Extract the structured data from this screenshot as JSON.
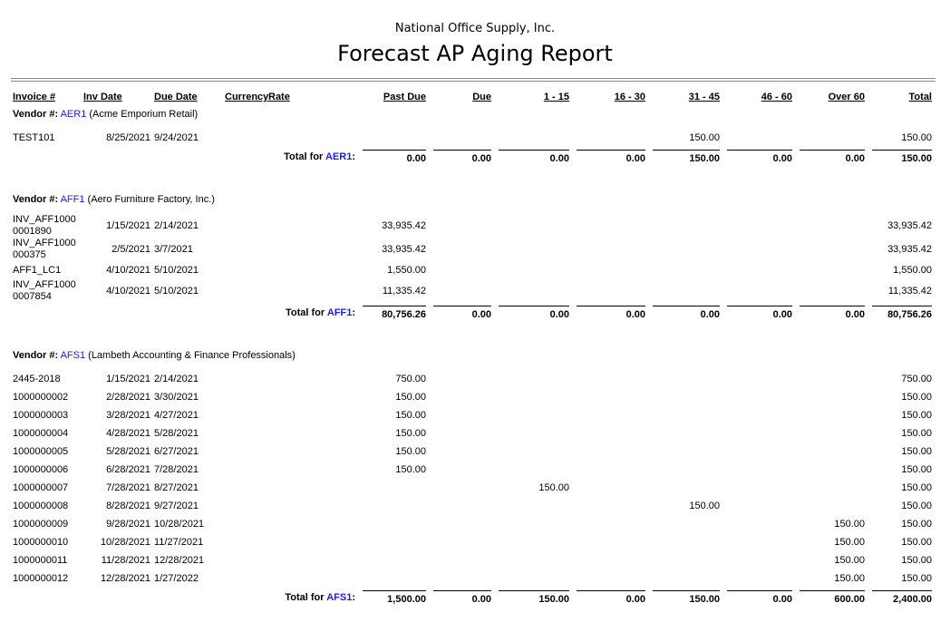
{
  "header": {
    "company": "National Office Supply, Inc.",
    "title": "Forecast AP Aging Report"
  },
  "labels": {
    "vendor": "Vendor #:",
    "total_for": "Total for",
    "colon": ":"
  },
  "columns": [
    "Invoice #",
    "Inv Date",
    "Due Date",
    "Currency",
    "Rate",
    "Past Due",
    "Due",
    "1 - 15",
    "16 - 30",
    "31 - 45",
    "46 - 60",
    "Over 60",
    "Total"
  ],
  "groups": [
    {
      "code": "AER1",
      "name": "(Acme Emporium Retail)",
      "rows": [
        [
          "TEST101",
          "8/25/2021",
          "9/24/2021",
          null,
          null,
          null,
          null,
          null,
          null,
          "150.00",
          null,
          null,
          "150.00"
        ]
      ],
      "totals": [
        "0.00",
        "0.00",
        "0.00",
        "0.00",
        "150.00",
        "0.00",
        "0.00",
        "150.00"
      ]
    },
    {
      "code": "AFF1",
      "name": "(Aero Furniture Factory, Inc.)",
      "rows": [
        [
          "INV_AFF10000001890",
          "1/15/2021",
          "2/14/2021",
          null,
          null,
          "33,935.42",
          null,
          null,
          null,
          null,
          null,
          null,
          "33,935.42"
        ],
        [
          "INV_AFF1000000375",
          "2/5/2021",
          "3/7/2021",
          null,
          null,
          "33,935.42",
          null,
          null,
          null,
          null,
          null,
          null,
          "33,935.42"
        ],
        [
          "AFF1_LC1",
          "4/10/2021",
          "5/10/2021",
          null,
          null,
          "1,550.00",
          null,
          null,
          null,
          null,
          null,
          null,
          "1,550.00"
        ],
        [
          "INV_AFF10000007854",
          "4/10/2021",
          "5/10/2021",
          null,
          null,
          "11,335.42",
          null,
          null,
          null,
          null,
          null,
          null,
          "11,335.42"
        ]
      ],
      "totals": [
        "80,756.26",
        "0.00",
        "0.00",
        "0.00",
        "0.00",
        "0.00",
        "0.00",
        "80,756.26"
      ]
    },
    {
      "code": "AFS1",
      "name": "(Lambeth Accounting & Finance Professionals)",
      "rows": [
        [
          "2445-2018",
          "1/15/2021",
          "2/14/2021",
          null,
          null,
          "750.00",
          null,
          null,
          null,
          null,
          null,
          null,
          "750.00"
        ],
        [
          "1000000002",
          "2/28/2021",
          "3/30/2021",
          null,
          null,
          "150.00",
          null,
          null,
          null,
          null,
          null,
          null,
          "150.00"
        ],
        [
          "1000000003",
          "3/28/2021",
          "4/27/2021",
          null,
          null,
          "150.00",
          null,
          null,
          null,
          null,
          null,
          null,
          "150.00"
        ],
        [
          "1000000004",
          "4/28/2021",
          "5/28/2021",
          null,
          null,
          "150.00",
          null,
          null,
          null,
          null,
          null,
          null,
          "150.00"
        ],
        [
          "1000000005",
          "5/28/2021",
          "6/27/2021",
          null,
          null,
          "150.00",
          null,
          null,
          null,
          null,
          null,
          null,
          "150.00"
        ],
        [
          "1000000006",
          "6/28/2021",
          "7/28/2021",
          null,
          null,
          "150.00",
          null,
          null,
          null,
          null,
          null,
          null,
          "150.00"
        ],
        [
          "1000000007",
          "7/28/2021",
          "8/27/2021",
          null,
          null,
          null,
          null,
          "150.00",
          null,
          null,
          null,
          null,
          "150.00"
        ],
        [
          "1000000008",
          "8/28/2021",
          "9/27/2021",
          null,
          null,
          null,
          null,
          null,
          null,
          "150.00",
          null,
          null,
          "150.00"
        ],
        [
          "1000000009",
          "9/28/2021",
          "10/28/2021",
          null,
          null,
          null,
          null,
          null,
          null,
          null,
          null,
          "150.00",
          "150.00"
        ],
        [
          "1000000010",
          "10/28/2021",
          "11/27/2021",
          null,
          null,
          null,
          null,
          null,
          null,
          null,
          null,
          "150.00",
          "150.00"
        ],
        [
          "1000000011",
          "11/28/2021",
          "12/28/2021",
          null,
          null,
          null,
          null,
          null,
          null,
          null,
          null,
          "150.00",
          "150.00"
        ],
        [
          "1000000012",
          "12/28/2021",
          "1/27/2022",
          null,
          null,
          null,
          null,
          null,
          null,
          null,
          null,
          "150.00",
          "150.00"
        ]
      ],
      "totals": [
        "1,500.00",
        "0.00",
        "150.00",
        "0.00",
        "150.00",
        "0.00",
        "600.00",
        "2,400.00"
      ]
    }
  ]
}
